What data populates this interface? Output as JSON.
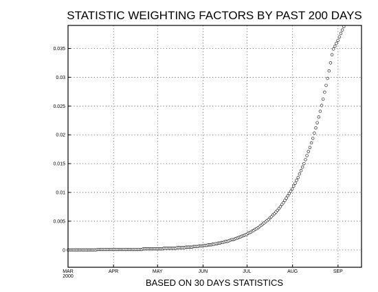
{
  "chart_data": {
    "type": "scatter",
    "title": "STATISTIC WEIGHTING FACTORS BY PAST 200 DAYS",
    "xlabel": "BASED ON 30 DAYS STATISTICS",
    "ylabel": "",
    "x_ticks": [
      "MAR",
      "APR",
      "MAY",
      "JUN",
      "JUL",
      "AUG",
      "SEP"
    ],
    "x_tick_sublabel": "2000",
    "y_ticks": [
      "0",
      "0.005",
      "0.01",
      "0.015",
      "0.02",
      "0.025",
      "0.03",
      "0.035"
    ],
    "ylim": [
      -0.003,
      0.039
    ],
    "grid": true,
    "series": [
      {
        "x_start": "2000-03-01",
        "x_end": "2000-09-17",
        "n_points": 200,
        "values": [
          0.0,
          0.0,
          0.0,
          0.0,
          0.0,
          0.0,
          0.0,
          0.0,
          0.0,
          0.0,
          0.0,
          0.0,
          0.0,
          0.0,
          0.0,
          0.0,
          0.0,
          0.0,
          0.0,
          0.0,
          0.0001,
          0.0001,
          0.0001,
          0.0001,
          0.0001,
          0.0001,
          0.0001,
          0.0001,
          0.0001,
          0.0001,
          0.0001,
          0.0001,
          0.0001,
          0.0001,
          0.0001,
          0.0001,
          0.0001,
          0.0001,
          0.0001,
          0.0001,
          0.0001,
          0.0001,
          0.0001,
          0.0001,
          0.0001,
          0.0001,
          0.0001,
          0.0001,
          0.0001,
          0.0001,
          0.0001,
          0.0002,
          0.0002,
          0.0002,
          0.0002,
          0.0002,
          0.0002,
          0.0002,
          0.0002,
          0.0002,
          0.0002,
          0.0002,
          0.0002,
          0.0002,
          0.0002,
          0.0003,
          0.0003,
          0.0003,
          0.0003,
          0.0003,
          0.0003,
          0.0003,
          0.0003,
          0.0003,
          0.0004,
          0.0004,
          0.0004,
          0.0004,
          0.0004,
          0.0004,
          0.0005,
          0.0005,
          0.0005,
          0.0005,
          0.0005,
          0.0006,
          0.0006,
          0.0006,
          0.0006,
          0.0007,
          0.0007,
          0.0007,
          0.0008,
          0.0008,
          0.0008,
          0.0009,
          0.0009,
          0.0009,
          0.001,
          0.001,
          0.0011,
          0.0011,
          0.0012,
          0.0012,
          0.0013,
          0.0013,
          0.0014,
          0.0015,
          0.0015,
          0.0016,
          0.0017,
          0.0018,
          0.0018,
          0.0019,
          0.002,
          0.0021,
          0.0022,
          0.0023,
          0.0024,
          0.0025,
          0.0026,
          0.0027,
          0.0029,
          0.003,
          0.0031,
          0.0033,
          0.0034,
          0.0036,
          0.0037,
          0.0039,
          0.0041,
          0.0043,
          0.0045,
          0.0047,
          0.0049,
          0.0051,
          0.0053,
          0.0056,
          0.0058,
          0.0061,
          0.0063,
          0.0066,
          0.0069,
          0.0072,
          0.0075,
          0.0079,
          0.0082,
          0.0086,
          0.009,
          0.0094,
          0.0098,
          0.0102,
          0.0106,
          0.0111,
          0.0116,
          0.0121,
          0.0126,
          0.0132,
          0.0138,
          0.0144,
          0.015,
          0.0157,
          0.0164,
          0.0171,
          0.0178,
          0.0186,
          0.0194,
          0.0203,
          0.0212,
          0.0221,
          0.0231,
          0.0241,
          0.0251,
          0.0262,
          0.0274,
          0.0286,
          0.0298,
          0.0311,
          0.0325,
          0.0339,
          0.0349,
          0.0354,
          0.0359,
          0.0364,
          0.037,
          0.0376,
          0.0382,
          0.0388,
          0.0394,
          0.04,
          0.04,
          0.04,
          0.04,
          0.04,
          0.04,
          0.04,
          0.04,
          0.04,
          0.04,
          0.04
        ]
      }
    ]
  }
}
